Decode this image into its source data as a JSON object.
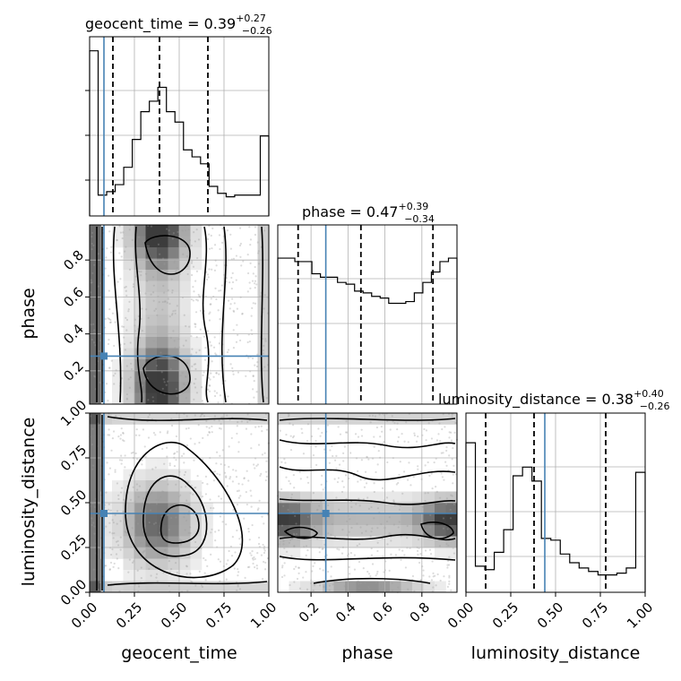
{
  "chart_data": {
    "type": "corner",
    "parameters": [
      "geocent_time",
      "phase",
      "luminosity_distance"
    ],
    "truths": {
      "geocent_time": 0.08,
      "phase": 0.28,
      "luminosity_distance": 0.44
    },
    "titles": {
      "geocent_time": {
        "name": "geocent_time",
        "median": "0.39",
        "plus": "+0.27",
        "minus": "−0.26"
      },
      "phase": {
        "name": "phase",
        "median": "0.47",
        "plus": "+0.39",
        "minus": "−0.34"
      },
      "luminosity_distance": {
        "name": "luminosity_distance",
        "median": "0.38",
        "plus": "+0.40",
        "minus": "−0.26"
      }
    },
    "ranges": {
      "geocent_time": [
        0.0,
        1.0
      ],
      "phase": [
        0.02,
        0.99
      ],
      "luminosity_distance": [
        0.0,
        1.0
      ]
    },
    "tick_labels": {
      "geocent_time": [
        "0.00",
        "0.25",
        "0.50",
        "0.75",
        "1.00"
      ],
      "phase": [
        "0.2",
        "0.4",
        "0.6",
        "0.8"
      ],
      "luminosity_distance": [
        "0.00",
        "0.25",
        "0.50",
        "0.75",
        "1.00"
      ]
    },
    "quantile_lines": {
      "geocent_time": [
        0.13,
        0.39,
        0.66
      ],
      "phase": [
        0.13,
        0.47,
        0.86
      ],
      "luminosity_distance": [
        0.11,
        0.38,
        0.78
      ]
    },
    "histograms": {
      "geocent_time": [
        0.95,
        0.12,
        0.14,
        0.18,
        0.28,
        0.44,
        0.6,
        0.66,
        0.74,
        0.6,
        0.54,
        0.38,
        0.34,
        0.3,
        0.17,
        0.13,
        0.11,
        0.12,
        0.12,
        0.12,
        0.46
      ],
      "phase": [
        0.84,
        0.84,
        0.82,
        0.82,
        0.75,
        0.73,
        0.73,
        0.7,
        0.69,
        0.65,
        0.64,
        0.62,
        0.61,
        0.58,
        0.58,
        0.59,
        0.64,
        0.7,
        0.76,
        0.82,
        0.84
      ],
      "luminosity_distance": [
        0.86,
        0.15,
        0.13,
        0.23,
        0.36,
        0.67,
        0.72,
        0.64,
        0.31,
        0.3,
        0.22,
        0.17,
        0.14,
        0.12,
        0.1,
        0.1,
        0.11,
        0.14,
        0.69
      ]
    },
    "grid": true
  }
}
